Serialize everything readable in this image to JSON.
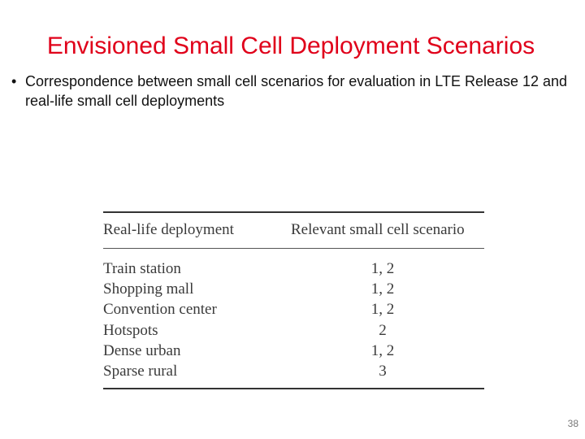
{
  "slide": {
    "title": "Envisioned Small Cell Deployment Scenarios",
    "bullet": {
      "marker": "•",
      "text": "Correspondence between small cell scenarios for evaluation in LTE Release 12 and real-life small cell deployments"
    },
    "page_number": "38"
  },
  "table": {
    "headers": [
      "Real-life deployment",
      "Relevant small cell scenario"
    ],
    "rows": [
      [
        "Train station",
        "1, 2"
      ],
      [
        "Shopping mall",
        "1, 2"
      ],
      [
        "Convention center",
        "1, 2"
      ],
      [
        "Hotspots",
        "2"
      ],
      [
        "Dense urban",
        "1, 2"
      ],
      [
        "Sparse rural",
        "3"
      ]
    ]
  },
  "colors": {
    "title": "#e0001a",
    "body_text": "#111111",
    "table_text": "#3a3a3a"
  }
}
